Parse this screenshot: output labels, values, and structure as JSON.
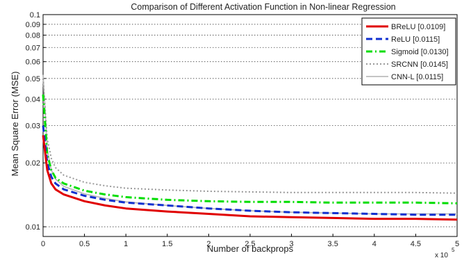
{
  "chart_data": {
    "type": "line",
    "title": "Comparison of Different Activation Function in Non-linear Regression",
    "xlabel": "Number of backprops",
    "ylabel": "Mean Square Error (MSE)",
    "x_multiplier_label": "x 10",
    "x_multiplier_exponent": "5",
    "x_scale": "linear",
    "y_scale": "log",
    "xlim": [
      0,
      5
    ],
    "ylim": [
      0.009,
      0.1
    ],
    "x_ticks": [
      0,
      0.5,
      1,
      1.5,
      2,
      2.5,
      3,
      3.5,
      4,
      4.5,
      5
    ],
    "x_tick_labels": [
      "0",
      "0.5",
      "1",
      "1.5",
      "2",
      "2.5",
      "3",
      "3.5",
      "4",
      "4.5",
      "5"
    ],
    "y_ticks": [
      0.01,
      0.02,
      0.03,
      0.04,
      0.05,
      0.06,
      0.07,
      0.08,
      0.09,
      0.1
    ],
    "y_tick_labels": [
      "0.01",
      "0.02",
      "0.03",
      "0.04",
      "0.05",
      "0.06",
      "0.07",
      "0.08",
      "0.09",
      "0.1"
    ],
    "grid": "horizontal dotted",
    "legend_position": "top-right",
    "x": [
      0.0,
      0.05,
      0.1,
      0.15,
      0.25,
      0.5,
      0.75,
      1.0,
      1.5,
      2.0,
      2.5,
      3.0,
      3.5,
      4.0,
      4.5,
      5.0
    ],
    "series": [
      {
        "name": "BReLU [0.0109]",
        "color": "#e00000",
        "style": "solid",
        "values": [
          0.027,
          0.0185,
          0.016,
          0.015,
          0.0142,
          0.0132,
          0.0126,
          0.0122,
          0.0118,
          0.0115,
          0.0112,
          0.0111,
          0.011,
          0.0109,
          0.0109,
          0.0108
        ]
      },
      {
        "name": "ReLU [0.0115]",
        "color": "#1030d0",
        "style": "dashed",
        "values": [
          0.03,
          0.02,
          0.0172,
          0.016,
          0.015,
          0.014,
          0.0134,
          0.013,
          0.0126,
          0.0122,
          0.0119,
          0.0117,
          0.0116,
          0.0115,
          0.0114,
          0.0114
        ]
      },
      {
        "name": "Sigmoid [0.0130]",
        "color": "#00dd00",
        "style": "dashdot",
        "values": [
          0.042,
          0.022,
          0.0185,
          0.017,
          0.016,
          0.0148,
          0.0142,
          0.0138,
          0.0134,
          0.0132,
          0.0131,
          0.0131,
          0.013,
          0.013,
          0.013,
          0.0129
        ]
      },
      {
        "name": "SRCNN [0.0145]",
        "color": "#999999",
        "style": "dotted",
        "values": [
          0.05,
          0.026,
          0.021,
          0.019,
          0.0175,
          0.0162,
          0.0156,
          0.0152,
          0.0149,
          0.0147,
          0.0146,
          0.0145,
          0.0145,
          0.0145,
          0.0145,
          0.0144
        ]
      },
      {
        "name": "CNN-L [0.0115]",
        "color": "#bbbbbb",
        "style": "solid",
        "values": [
          0.052,
          0.023,
          0.0185,
          0.0168,
          0.0155,
          0.0143,
          0.0136,
          0.0131,
          0.0126,
          0.0122,
          0.0119,
          0.0117,
          0.0116,
          0.0115,
          0.0115,
          0.0115
        ]
      }
    ]
  }
}
